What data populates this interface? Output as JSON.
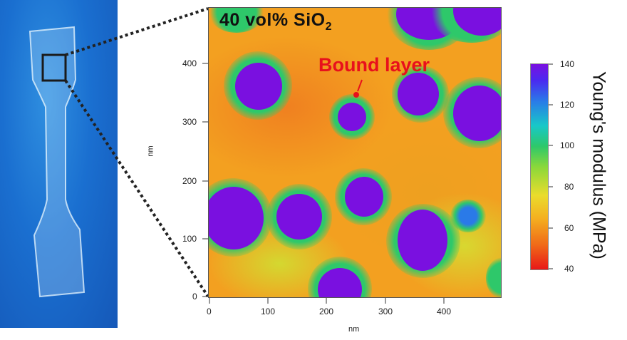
{
  "map": {
    "title_main": "40 vol% SiO",
    "title_sub": "2",
    "annotation": "Bound layer",
    "x_axis_label": "nm",
    "y_axis_label": "nm",
    "x_ticks": [
      "0",
      "100",
      "200",
      "300",
      "400"
    ],
    "y_ticks": [
      "0",
      "100",
      "200",
      "300",
      "400"
    ]
  },
  "colorbar": {
    "label": "Young's modulus  (MPa)",
    "ticks": [
      "140",
      "120",
      "100",
      "80",
      "60",
      "40"
    ],
    "colors": {
      "high": "#7a10e0",
      "mid_high": "#2a7ae8",
      "mid": "#2ec86a",
      "mid_low": "#eadc2c",
      "low": "#e81818"
    }
  }
}
